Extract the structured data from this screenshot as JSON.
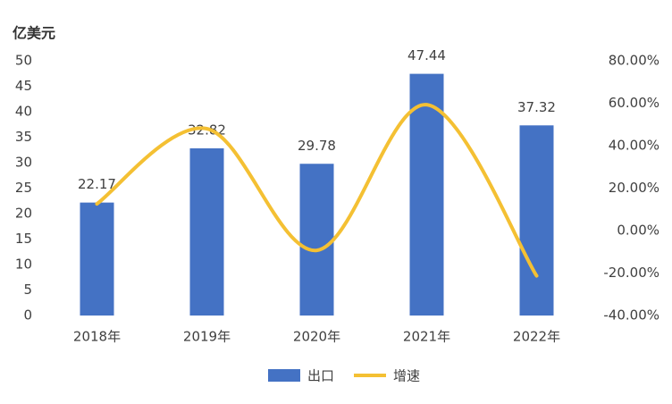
{
  "chart_data": {
    "type": "bar-line",
    "y_label": "亿美元",
    "categories": [
      "2018年",
      "2019年",
      "2020年",
      "2021年",
      "2022年"
    ],
    "series": [
      {
        "name": "出口",
        "type": "bar",
        "color": "#4472c4",
        "values": [
          22.17,
          32.82,
          29.78,
          47.44,
          37.32
        ]
      },
      {
        "name": "增速",
        "type": "line",
        "axis": "y2",
        "color": "#f4c033",
        "values": [
          12.6,
          48.0,
          -9.3,
          59.3,
          -21.3
        ]
      }
    ],
    "ylim": [
      0,
      50
    ],
    "yticks": [
      0,
      5,
      10,
      15,
      20,
      25,
      30,
      35,
      40,
      45,
      50
    ],
    "y2lim": [
      -40,
      80
    ],
    "y2ticks": [
      {
        "value": -40,
        "label": "-40.00%"
      },
      {
        "value": -20,
        "label": "-20.00%"
      },
      {
        "value": 0,
        "label": "0.00%"
      },
      {
        "value": 20,
        "label": "20.00%"
      },
      {
        "value": 40,
        "label": "40.00%"
      },
      {
        "value": 60,
        "label": "60.00%"
      },
      {
        "value": 80,
        "label": "80.00%"
      }
    ],
    "legend": "bottom"
  }
}
